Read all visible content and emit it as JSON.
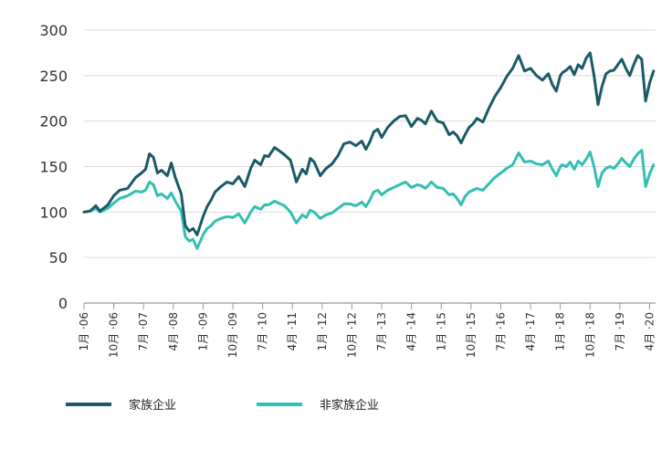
{
  "colors": {
    "family": "#1a5a66",
    "nonfamily": "#33bfb3",
    "grid": "#dcdcdc",
    "axis": "#999999"
  },
  "chart_data": {
    "type": "line",
    "title": "",
    "xlabel": "",
    "ylabel": "",
    "ylim": [
      0,
      300
    ],
    "yticks": [
      0,
      50,
      100,
      150,
      200,
      250,
      300
    ],
    "xlim": [
      2006.0,
      2020.4
    ],
    "xtick_labels": [
      "1月 ·06",
      "10月 ·06",
      "7月 ·07",
      "4月 ·08",
      "1月 ·09",
      "10月 ·09",
      "7月 ·10",
      "4月 ·11",
      "1月 ·12",
      "10月 ·12",
      "7月 ·13",
      "4月 ·14",
      "1月 ·15",
      "10月 ·15",
      "7月 ·16",
      "4月 ·17",
      "1月 ·18",
      "10月 ·18",
      "7月 ·19",
      "4月 ·20"
    ],
    "xtick_positions": [
      2006.0,
      2006.75,
      2007.5,
      2008.25,
      2009.0,
      2009.75,
      2010.5,
      2011.25,
      2012.0,
      2012.75,
      2013.5,
      2014.25,
      2015.0,
      2015.75,
      2016.5,
      2017.25,
      2018.0,
      2018.75,
      2019.5,
      2020.25
    ],
    "series": [
      {
        "name": "家族企业",
        "x": [
          2006.0,
          2006.15,
          2006.3,
          2006.4,
          2006.6,
          2006.75,
          2006.9,
          2007.1,
          2007.3,
          2007.45,
          2007.55,
          2007.65,
          2007.75,
          2007.85,
          2007.95,
          2008.1,
          2008.2,
          2008.3,
          2008.45,
          2008.55,
          2008.65,
          2008.75,
          2008.85,
          2009.0,
          2009.1,
          2009.2,
          2009.3,
          2009.45,
          2009.6,
          2009.75,
          2009.9,
          2010.05,
          2010.2,
          2010.3,
          2010.45,
          2010.55,
          2010.65,
          2010.8,
          2010.9,
          2011.05,
          2011.2,
          2011.35,
          2011.5,
          2011.6,
          2011.7,
          2011.8,
          2011.95,
          2012.1,
          2012.25,
          2012.4,
          2012.55,
          2012.7,
          2012.85,
          2013.0,
          2013.1,
          2013.2,
          2013.3,
          2013.4,
          2013.5,
          2013.65,
          2013.8,
          2013.95,
          2014.1,
          2014.25,
          2014.4,
          2014.5,
          2014.6,
          2014.75,
          2014.9,
          2015.05,
          2015.2,
          2015.3,
          2015.4,
          2015.5,
          2015.6,
          2015.7,
          2015.8,
          2015.9,
          2016.05,
          2016.2,
          2016.35,
          2016.5,
          2016.65,
          2016.8,
          2016.95,
          2017.1,
          2017.25,
          2017.4,
          2017.55,
          2017.7,
          2017.8,
          2017.9,
          2018.0,
          2018.05,
          2018.15,
          2018.25,
          2018.35,
          2018.45,
          2018.55,
          2018.65,
          2018.75,
          2018.85,
          2018.95,
          2019.05,
          2019.15,
          2019.25,
          2019.35,
          2019.45,
          2019.55,
          2019.65,
          2019.75,
          2019.85,
          2019.95,
          2020.05,
          2020.15,
          2020.25,
          2020.35
        ],
        "values": [
          100,
          101,
          107,
          101,
          108,
          118,
          124,
          126,
          138,
          143,
          147,
          164,
          160,
          143,
          146,
          140,
          154,
          138,
          120,
          85,
          79,
          82,
          75,
          95,
          106,
          113,
          122,
          128,
          133,
          131,
          139,
          128,
          148,
          157,
          152,
          162,
          161,
          171,
          168,
          163,
          157,
          133,
          147,
          142,
          159,
          155,
          140,
          148,
          153,
          162,
          175,
          177,
          173,
          178,
          169,
          177,
          188,
          191,
          182,
          193,
          200,
          205,
          206,
          194,
          203,
          201,
          197,
          211,
          200,
          198,
          185,
          188,
          184,
          176,
          185,
          193,
          197,
          203,
          199,
          214,
          227,
          237,
          249,
          258,
          272,
          255,
          258,
          250,
          245,
          252,
          240,
          233,
          250,
          253,
          256,
          260,
          251,
          262,
          258,
          269,
          275,
          250,
          218,
          238,
          252,
          255,
          256,
          262,
          268,
          258,
          250,
          262,
          272,
          268,
          222,
          242,
          255
        ]
      },
      {
        "name": "非家族企业",
        "x": [
          2006.0,
          2006.15,
          2006.3,
          2006.4,
          2006.6,
          2006.75,
          2006.9,
          2007.1,
          2007.3,
          2007.45,
          2007.55,
          2007.65,
          2007.75,
          2007.85,
          2007.95,
          2008.1,
          2008.2,
          2008.3,
          2008.45,
          2008.55,
          2008.65,
          2008.75,
          2008.85,
          2009.0,
          2009.1,
          2009.2,
          2009.3,
          2009.45,
          2009.6,
          2009.75,
          2009.9,
          2010.05,
          2010.2,
          2010.3,
          2010.45,
          2010.55,
          2010.65,
          2010.8,
          2010.9,
          2011.05,
          2011.2,
          2011.35,
          2011.5,
          2011.6,
          2011.7,
          2011.8,
          2011.95,
          2012.1,
          2012.25,
          2012.4,
          2012.55,
          2012.7,
          2012.85,
          2013.0,
          2013.1,
          2013.2,
          2013.3,
          2013.4,
          2013.5,
          2013.65,
          2013.8,
          2013.95,
          2014.1,
          2014.25,
          2014.4,
          2014.5,
          2014.6,
          2014.75,
          2014.9,
          2015.05,
          2015.2,
          2015.3,
          2015.4,
          2015.5,
          2015.6,
          2015.7,
          2015.8,
          2015.9,
          2016.05,
          2016.2,
          2016.35,
          2016.5,
          2016.65,
          2016.8,
          2016.95,
          2017.1,
          2017.25,
          2017.4,
          2017.55,
          2017.7,
          2017.8,
          2017.9,
          2018.0,
          2018.05,
          2018.15,
          2018.25,
          2018.35,
          2018.45,
          2018.55,
          2018.65,
          2018.75,
          2018.85,
          2018.95,
          2019.05,
          2019.15,
          2019.25,
          2019.35,
          2019.45,
          2019.55,
          2019.65,
          2019.75,
          2019.85,
          2019.95,
          2020.05,
          2020.15,
          2020.25,
          2020.35
        ],
        "values": [
          100,
          101,
          104,
          100,
          104,
          110,
          115,
          118,
          123,
          122,
          124,
          133,
          130,
          118,
          120,
          115,
          121,
          112,
          101,
          73,
          68,
          70,
          60,
          75,
          82,
          85,
          90,
          93,
          95,
          94,
          98,
          88,
          100,
          106,
          103,
          108,
          108,
          112,
          110,
          107,
          100,
          88,
          97,
          94,
          102,
          100,
          93,
          97,
          99,
          104,
          109,
          109,
          107,
          111,
          106,
          113,
          122,
          124,
          119,
          124,
          127,
          130,
          133,
          127,
          130,
          129,
          126,
          133,
          127,
          126,
          119,
          120,
          115,
          108,
          117,
          122,
          124,
          126,
          124,
          131,
          138,
          143,
          148,
          152,
          165,
          155,
          156,
          153,
          152,
          156,
          147,
          140,
          150,
          152,
          150,
          155,
          147,
          156,
          152,
          158,
          166,
          150,
          128,
          143,
          148,
          150,
          148,
          153,
          159,
          154,
          150,
          158,
          164,
          168,
          128,
          142,
          152
        ]
      }
    ],
    "legend": [
      {
        "name": "家族企业",
        "key": "family"
      },
      {
        "name": "非家族企业",
        "key": "nonfamily"
      }
    ],
    "grid": true,
    "legend_position": "bottom-left"
  }
}
